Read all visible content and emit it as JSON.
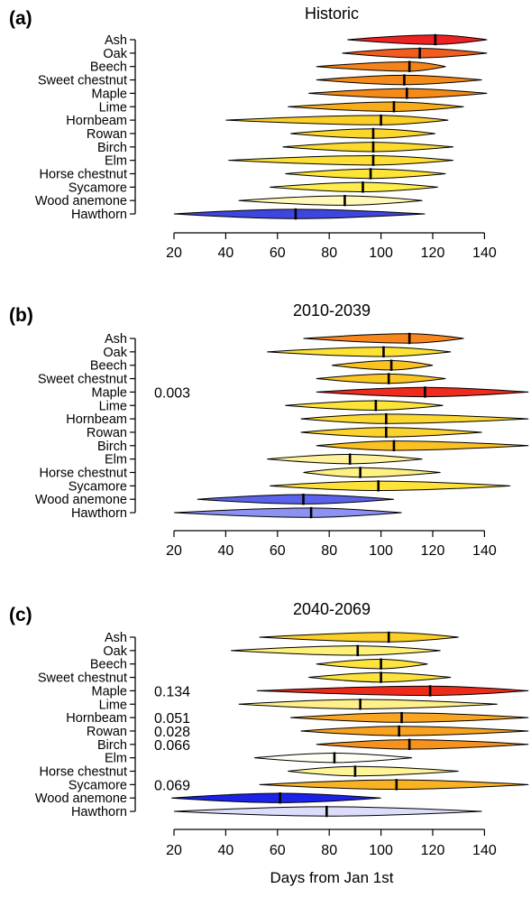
{
  "chart_data": {
    "type": "violin",
    "xlabel": "Days from Jan 1st",
    "xlim": [
      15,
      157
    ],
    "x_ticks": [
      20,
      40,
      60,
      80,
      100,
      120,
      140
    ],
    "species": [
      "Ash",
      "Oak",
      "Beech",
      "Sweet chestnut",
      "Maple",
      "Lime",
      "Hornbeam",
      "Rowan",
      "Birch",
      "Elm",
      "Horse chestnut",
      "Sycamore",
      "Wood anemone",
      "Hawthorn"
    ],
    "panels": [
      {
        "letter": "(a)",
        "title": "Historic",
        "series": [
          {
            "name": "Ash",
            "min": 87,
            "max": 141,
            "median": 121,
            "peak": 121,
            "color": "#ee2222"
          },
          {
            "name": "Oak",
            "min": 85,
            "max": 141,
            "median": 115,
            "peak": 115,
            "color": "#f05d1c"
          },
          {
            "name": "Beech",
            "min": 75,
            "max": 125,
            "median": 111,
            "peak": 111,
            "color": "#f3831a"
          },
          {
            "name": "Sweet chestnut",
            "min": 75,
            "max": 139,
            "median": 109,
            "peak": 109,
            "color": "#f48a18"
          },
          {
            "name": "Maple",
            "min": 72,
            "max": 141,
            "median": 110,
            "peak": 110,
            "color": "#f58a19"
          },
          {
            "name": "Lime",
            "min": 64,
            "max": 132,
            "median": 105,
            "peak": 105,
            "color": "#f9ac1a"
          },
          {
            "name": "Hornbeam",
            "min": 40,
            "max": 126,
            "median": 100,
            "peak": 100,
            "color": "#fbcf26"
          },
          {
            "name": "Rowan",
            "min": 65,
            "max": 121,
            "median": 97,
            "peak": 97,
            "color": "#fcd72b"
          },
          {
            "name": "Birch",
            "min": 62,
            "max": 128,
            "median": 97,
            "peak": 97,
            "color": "#fcd92c"
          },
          {
            "name": "Elm",
            "min": 41,
            "max": 128,
            "median": 97,
            "peak": 97,
            "color": "#fde033"
          },
          {
            "name": "Horse chestnut",
            "min": 63,
            "max": 125,
            "median": 96,
            "peak": 96,
            "color": "#fde435"
          },
          {
            "name": "Sycamore",
            "min": 57,
            "max": 122,
            "median": 93,
            "peak": 93,
            "color": "#feed4a"
          },
          {
            "name": "Wood anemone",
            "min": 45,
            "max": 116,
            "median": 86,
            "peak": 86,
            "color": "#fff8b6"
          },
          {
            "name": "Hawthorn",
            "min": 20,
            "max": 117,
            "median": 67,
            "peak": 67,
            "color": "#3e46e0"
          }
        ],
        "pvalues": []
      },
      {
        "letter": "(b)",
        "title": "2010-2039",
        "series": [
          {
            "name": "Ash",
            "min": 70,
            "max": 132,
            "median": 111,
            "peak": 111,
            "color": "#f7861c"
          },
          {
            "name": "Oak",
            "min": 56,
            "max": 127,
            "median": 101,
            "peak": 101,
            "color": "#fde232"
          },
          {
            "name": "Beech",
            "min": 81,
            "max": 120,
            "median": 104,
            "peak": 104,
            "color": "#fbc322"
          },
          {
            "name": "Sweet chestnut",
            "min": 75,
            "max": 125,
            "median": 103,
            "peak": 103,
            "color": "#fbc524"
          },
          {
            "name": "Maple",
            "min": 75,
            "max": 157,
            "median": 117,
            "peak": 117,
            "color": "#ee2b1d"
          },
          {
            "name": "Lime",
            "min": 63,
            "max": 124,
            "median": 98,
            "peak": 98,
            "color": "#fde437"
          },
          {
            "name": "Hornbeam",
            "min": 69,
            "max": 157,
            "median": 102,
            "peak": 102,
            "color": "#fcd730"
          },
          {
            "name": "Rowan",
            "min": 69,
            "max": 139,
            "median": 102,
            "peak": 102,
            "color": "#fcd22c"
          },
          {
            "name": "Birch",
            "min": 75,
            "max": 157,
            "median": 105,
            "peak": 105,
            "color": "#fbc022"
          },
          {
            "name": "Elm",
            "min": 56,
            "max": 116,
            "median": 88,
            "peak": 88,
            "color": "#fff29a"
          },
          {
            "name": "Horse chestnut",
            "min": 70,
            "max": 123,
            "median": 92,
            "peak": 92,
            "color": "#fff082"
          },
          {
            "name": "Sycamore",
            "min": 57,
            "max": 150,
            "median": 99,
            "peak": 99,
            "color": "#fde23a"
          },
          {
            "name": "Wood anemone",
            "min": 29,
            "max": 105,
            "median": 70,
            "peak": 70,
            "color": "#5a63e9"
          },
          {
            "name": "Hawthorn",
            "min": 20,
            "max": 108,
            "median": 73,
            "peak": 73,
            "color": "#8c92f2"
          }
        ],
        "pvalues": [
          {
            "species": "Maple",
            "text": "0.003"
          }
        ]
      },
      {
        "letter": "(c)",
        "title": "2040-2069",
        "series": [
          {
            "name": "Ash",
            "min": 53,
            "max": 130,
            "median": 103,
            "peak": 103,
            "color": "#fcce28"
          },
          {
            "name": "Oak",
            "min": 42,
            "max": 123,
            "median": 91,
            "peak": 91,
            "color": "#fff078"
          },
          {
            "name": "Beech",
            "min": 75,
            "max": 118,
            "median": 100,
            "peak": 100,
            "color": "#fde33b"
          },
          {
            "name": "Sweet chestnut",
            "min": 72,
            "max": 127,
            "median": 100,
            "peak": 100,
            "color": "#fde23b"
          },
          {
            "name": "Maple",
            "min": 52,
            "max": 157,
            "median": 119,
            "peak": 119,
            "color": "#ee2b1b"
          },
          {
            "name": "Lime",
            "min": 45,
            "max": 145,
            "median": 92,
            "peak": 92,
            "color": "#fff08a"
          },
          {
            "name": "Hornbeam",
            "min": 65,
            "max": 157,
            "median": 108,
            "peak": 108,
            "color": "#f9a521"
          },
          {
            "name": "Rowan",
            "min": 69,
            "max": 157,
            "median": 107,
            "peak": 107,
            "color": "#f9a21f"
          },
          {
            "name": "Birch",
            "min": 75,
            "max": 157,
            "median": 111,
            "peak": 111,
            "color": "#f7931c"
          },
          {
            "name": "Elm",
            "min": 51,
            "max": 112,
            "median": 82,
            "peak": 82,
            "color": "#fffff6"
          },
          {
            "name": "Horse chestnut",
            "min": 64,
            "max": 130,
            "median": 90,
            "peak": 90,
            "color": "#fff596"
          },
          {
            "name": "Sycamore",
            "min": 53,
            "max": 157,
            "median": 106,
            "peak": 106,
            "color": "#f9b221"
          },
          {
            "name": "Wood anemone",
            "min": 19,
            "max": 100,
            "median": 61,
            "peak": 61,
            "color": "#1c22e8"
          },
          {
            "name": "Hawthorn",
            "min": 20,
            "max": 139,
            "median": 79,
            "peak": 79,
            "color": "#dcdcfb"
          }
        ],
        "pvalues": [
          {
            "species": "Maple",
            "text": "0.134"
          },
          {
            "species": "Hornbeam",
            "text": "0.051"
          },
          {
            "species": "Rowan",
            "text": "0.028"
          },
          {
            "species": "Birch",
            "text": "0.066"
          },
          {
            "species": "Sycamore",
            "text": "0.069"
          }
        ]
      }
    ]
  }
}
